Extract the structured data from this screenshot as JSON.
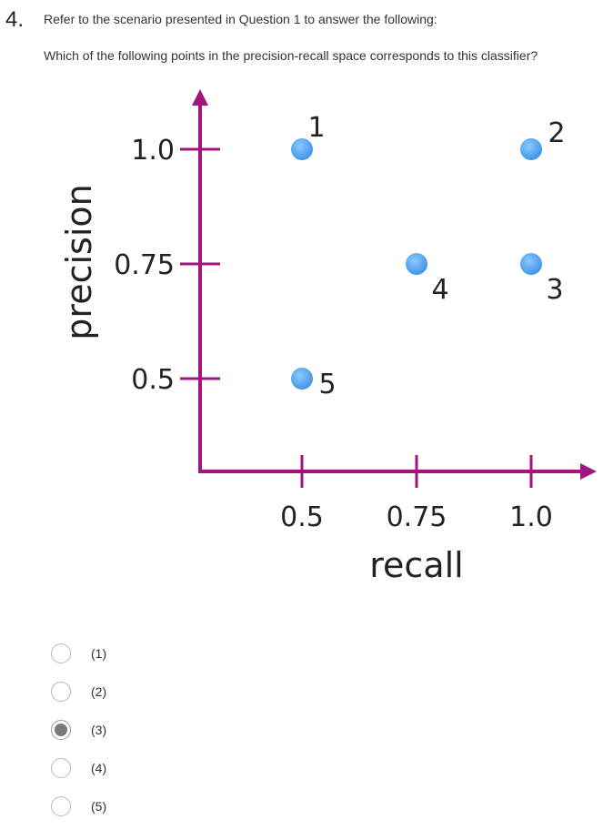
{
  "question": {
    "number": "4.",
    "line1": "Refer to the scenario presented in Question 1 to answer the following:",
    "line2": "Which of the following points in the precision-recall space corresponds to this classifier?"
  },
  "chart_data": {
    "type": "scatter",
    "xlabel": "recall",
    "ylabel": "precision",
    "x_ticks": [
      "0.5",
      "0.75",
      "1.0"
    ],
    "y_ticks": [
      "1.0",
      "0.75",
      "0.5"
    ],
    "points": [
      {
        "label": "1",
        "x": 0.5,
        "y": 1.0
      },
      {
        "label": "2",
        "x": 1.0,
        "y": 1.0
      },
      {
        "label": "3",
        "x": 1.0,
        "y": 0.75
      },
      {
        "label": "4",
        "x": 0.75,
        "y": 0.75
      },
      {
        "label": "5",
        "x": 0.5,
        "y": 0.5
      }
    ],
    "axis_color": "#a0167e",
    "point_color": "#4aa3ee"
  },
  "options": [
    {
      "label": "(1)",
      "selected": false
    },
    {
      "label": "(2)",
      "selected": false
    },
    {
      "label": "(3)",
      "selected": true
    },
    {
      "label": "(4)",
      "selected": false
    },
    {
      "label": "(5)",
      "selected": false
    }
  ]
}
